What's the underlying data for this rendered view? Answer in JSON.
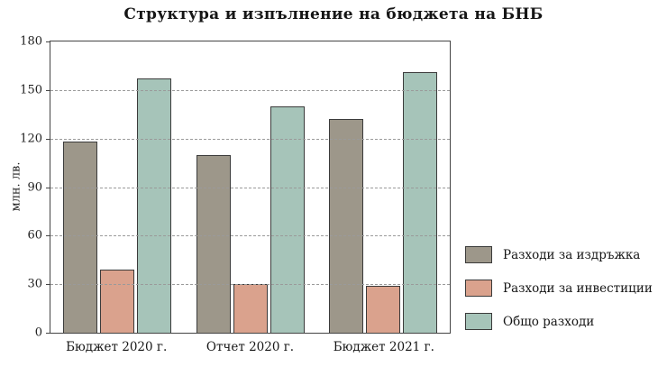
{
  "chart_data": {
    "type": "bar",
    "title": "Структура и изпълнение на бюджета на БНБ",
    "ylabel": "млн. лв.",
    "xlabel": "",
    "categories": [
      "Бюджет 2020 г.",
      "Отчет 2020 г.",
      "Бюджет 2021 г."
    ],
    "series": [
      {
        "name": "Разходи за издръжка",
        "color": "#9d978a",
        "values": [
          118,
          110,
          132
        ]
      },
      {
        "name": "Разходи за инвестиции",
        "color": "#daa28d",
        "values": [
          39,
          30,
          29
        ]
      },
      {
        "name": "Общо разходи",
        "color": "#a6c4b9",
        "values": [
          157,
          140,
          161
        ]
      }
    ],
    "ylim": [
      0,
      180
    ],
    "yticks": [
      0,
      30,
      60,
      90,
      120,
      150,
      180
    ],
    "grid": "dashed-horizontal",
    "legend_position": "right-bottom"
  }
}
